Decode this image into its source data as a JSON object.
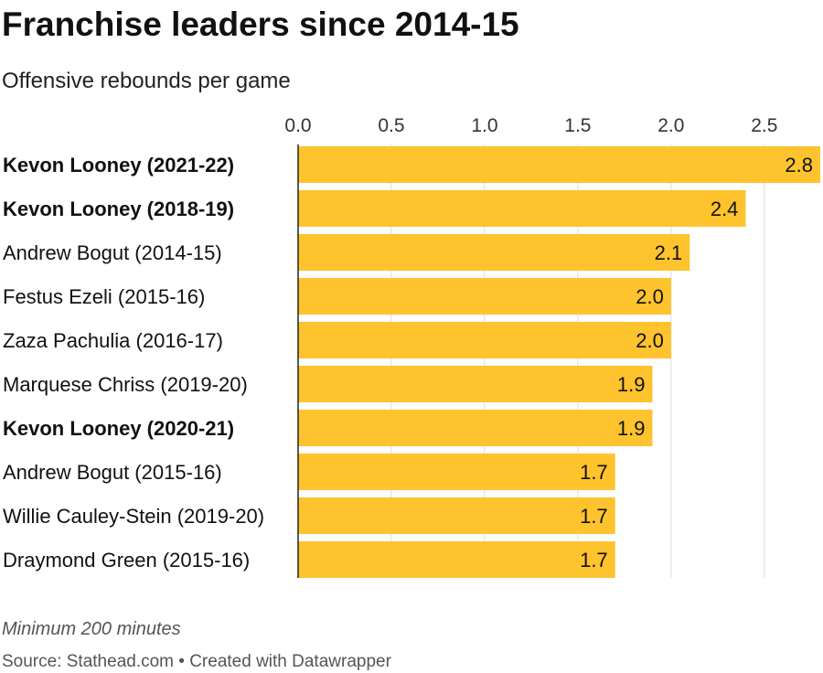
{
  "chart_data": {
    "type": "bar",
    "orientation": "horizontal",
    "title": "Franchise leaders since 2014-15",
    "subtitle": "Offensive rebounds per game",
    "categories": [
      "Kevon Looney (2021-22)",
      "Kevon Looney (2018-19)",
      "Andrew Bogut (2014-15)",
      "Festus Ezeli (2015-16)",
      "Zaza Pachulia (2016-17)",
      "Marquese Chriss (2019-20)",
      "Kevon Looney (2020-21)",
      "Andrew Bogut (2015-16)",
      "Willie Cauley-Stein (2019-20)",
      "Draymond Green (2015-16)"
    ],
    "values": [
      2.8,
      2.4,
      2.1,
      2.0,
      2.0,
      1.9,
      1.9,
      1.7,
      1.7,
      1.7
    ],
    "value_labels": [
      "2.8",
      "2.4",
      "2.1",
      "2.0",
      "2.0",
      "1.9",
      "1.9",
      "1.7",
      "1.7",
      "1.7"
    ],
    "highlighted": [
      true,
      true,
      false,
      false,
      false,
      false,
      true,
      false,
      false,
      false
    ],
    "xlim": [
      0,
      2.8
    ],
    "ticks": [
      0,
      0.5,
      1,
      1.5,
      2,
      2.5
    ],
    "tick_labels": [
      "0.0",
      "0.5",
      "1.0",
      "1.5",
      "2.0",
      "2.5"
    ],
    "bar_color": "#fec32d",
    "grid": true,
    "axis_position": "top",
    "note": "Minimum 200 minutes",
    "source": "Source: Stathead.com • Created with Datawrapper"
  }
}
